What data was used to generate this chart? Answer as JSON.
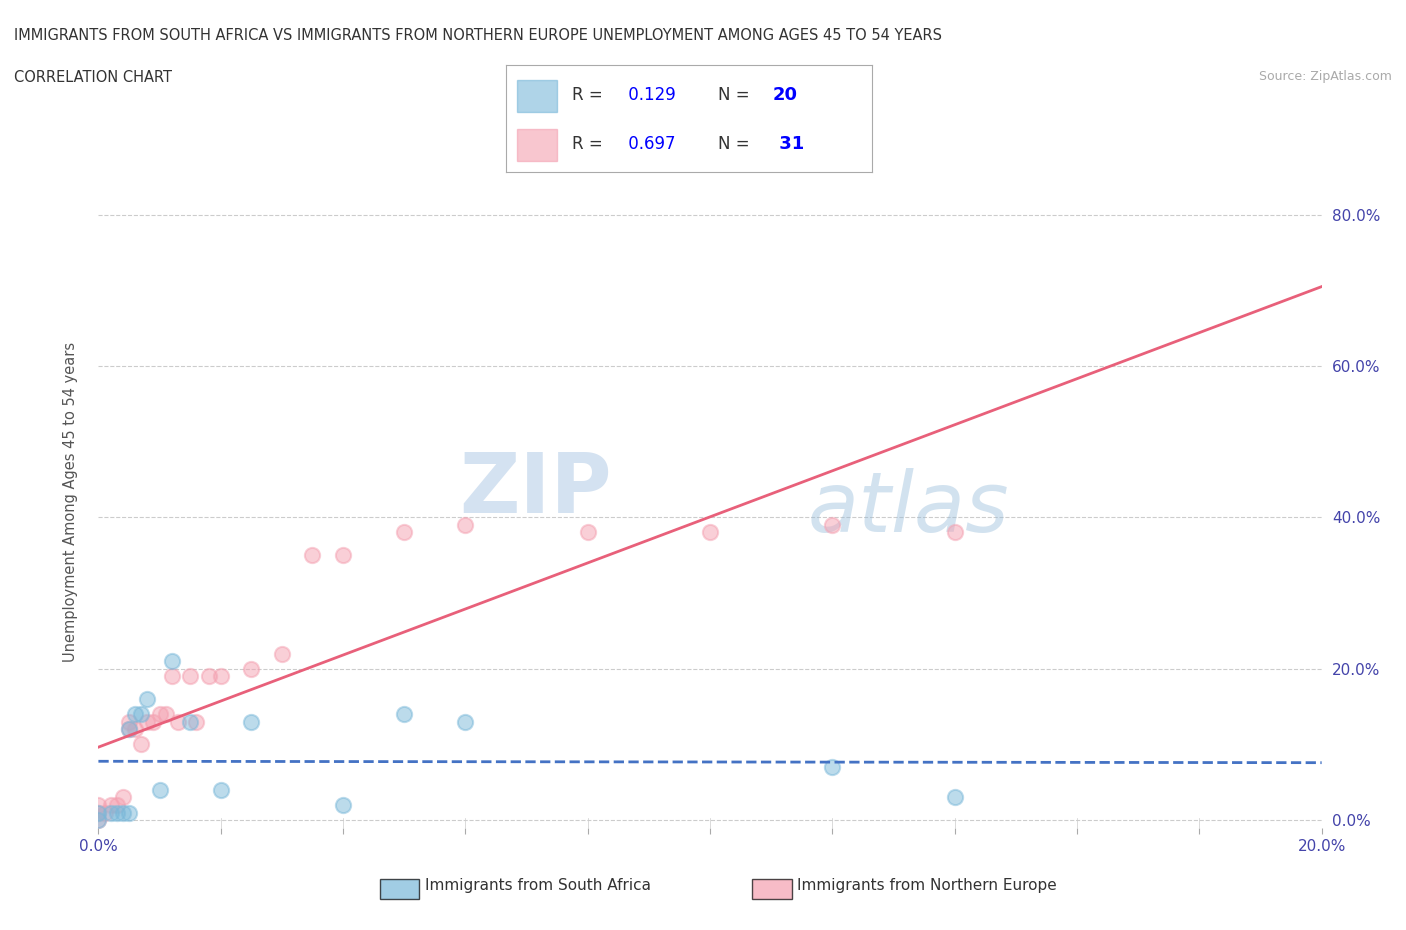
{
  "title_line1": "IMMIGRANTS FROM SOUTH AFRICA VS IMMIGRANTS FROM NORTHERN EUROPE UNEMPLOYMENT AMONG AGES 45 TO 54 YEARS",
  "title_line2": "CORRELATION CHART",
  "source": "Source: ZipAtlas.com",
  "ylabel": "Unemployment Among Ages 45 to 54 years",
  "xlim": [
    0.0,
    0.2
  ],
  "ylim": [
    -0.01,
    0.85
  ],
  "x_ticks": [
    0.0,
    0.02,
    0.04,
    0.06,
    0.08,
    0.1,
    0.12,
    0.14,
    0.16,
    0.18,
    0.2
  ],
  "y_ticks": [
    0.0,
    0.2,
    0.4,
    0.6,
    0.8
  ],
  "y_tick_labels": [
    "0.0%",
    "20.0%",
    "40.0%",
    "60.0%",
    "80.0%"
  ],
  "x_tick_labels": [
    "0.0%",
    "",
    "",
    "",
    "",
    "",
    "",
    "",
    "",
    "",
    "20.0%"
  ],
  "color_sa": "#7ab8d9",
  "color_ne": "#f4a0b0",
  "line_color_sa": "#4472c4",
  "line_color_ne": "#e8607a",
  "R_sa": 0.129,
  "N_sa": 20,
  "R_ne": 0.697,
  "N_ne": 31,
  "scatter_sa_x": [
    0.0,
    0.0,
    0.002,
    0.003,
    0.004,
    0.005,
    0.005,
    0.006,
    0.007,
    0.008,
    0.01,
    0.012,
    0.015,
    0.02,
    0.025,
    0.04,
    0.05,
    0.06,
    0.12,
    0.14
  ],
  "scatter_sa_y": [
    0.0,
    0.01,
    0.01,
    0.01,
    0.01,
    0.01,
    0.12,
    0.14,
    0.14,
    0.16,
    0.04,
    0.21,
    0.13,
    0.04,
    0.13,
    0.02,
    0.14,
    0.13,
    0.07,
    0.03
  ],
  "scatter_ne_x": [
    0.0,
    0.0,
    0.0,
    0.001,
    0.002,
    0.003,
    0.004,
    0.005,
    0.005,
    0.006,
    0.007,
    0.008,
    0.009,
    0.01,
    0.011,
    0.012,
    0.013,
    0.015,
    0.016,
    0.018,
    0.02,
    0.025,
    0.03,
    0.035,
    0.04,
    0.05,
    0.06,
    0.08,
    0.1,
    0.12,
    0.14
  ],
  "scatter_ne_y": [
    0.0,
    0.01,
    0.02,
    0.01,
    0.02,
    0.02,
    0.03,
    0.12,
    0.13,
    0.12,
    0.1,
    0.13,
    0.13,
    0.14,
    0.14,
    0.19,
    0.13,
    0.19,
    0.13,
    0.19,
    0.19,
    0.2,
    0.22,
    0.35,
    0.35,
    0.38,
    0.39,
    0.38,
    0.38,
    0.39,
    0.38
  ],
  "watermark_zip": "ZIP",
  "watermark_atlas": "atlas",
  "background_color": "#ffffff",
  "grid_color": "#cccccc",
  "tick_color": "#4444aa",
  "legend_text_color": "#333333",
  "legend_val_color": "#0000ff",
  "source_color": "#aaaaaa"
}
